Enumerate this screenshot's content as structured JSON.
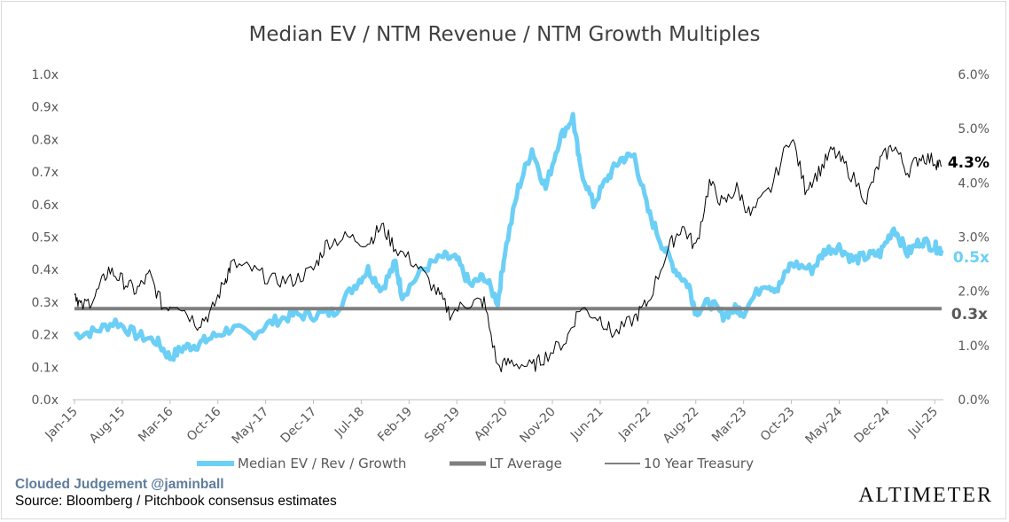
{
  "chart_data": {
    "type": "line",
    "title": "Median EV / NTM Revenue / NTM Growth Multiples",
    "x_tick_labels": [
      "Jan-15",
      "Aug-15",
      "Mar-16",
      "Oct-16",
      "May-17",
      "Dec-17",
      "Jul-18",
      "Feb-19",
      "Sep-19",
      "Apr-20",
      "Nov-20",
      "Jun-21",
      "Jan-22",
      "Aug-22",
      "Mar-23",
      "Oct-23",
      "May-24",
      "Dec-24",
      "Jul-25"
    ],
    "left_axis": {
      "ylim": [
        0,
        1.0
      ],
      "ticks": [
        "0.0x",
        "0.1x",
        "0.2x",
        "0.3x",
        "0.4x",
        "0.5x",
        "0.6x",
        "0.7x",
        "0.8x",
        "0.9x",
        "1.0x"
      ]
    },
    "right_axis": {
      "ylim": [
        0,
        6.0
      ],
      "ticks": [
        "0.0%",
        "1.0%",
        "2.0%",
        "3.0%",
        "4.0%",
        "5.0%",
        "6.0%"
      ]
    },
    "series": [
      {
        "name": "Median EV / Rev / Growth",
        "axis": "left",
        "color": "#6ccff6",
        "end_label": "0.5x",
        "points": [
          [
            "Jan-15",
            0.2
          ],
          [
            "Apr-15",
            0.21
          ],
          [
            "Jul-15",
            0.24
          ],
          [
            "Oct-15",
            0.2
          ],
          [
            "Jan-16",
            0.18
          ],
          [
            "Mar-16",
            0.13
          ],
          [
            "May-16",
            0.16
          ],
          [
            "Jul-16",
            0.17
          ],
          [
            "Sep-16",
            0.19
          ],
          [
            "Dec-16",
            0.22
          ],
          [
            "Mar-17",
            0.2
          ],
          [
            "Jun-17",
            0.24
          ],
          [
            "Sep-17",
            0.26
          ],
          [
            "Dec-17",
            0.26
          ],
          [
            "Mar-18",
            0.27
          ],
          [
            "Jun-18",
            0.35
          ],
          [
            "Aug-18",
            0.4
          ],
          [
            "Oct-18",
            0.34
          ],
          [
            "Dec-18",
            0.42
          ],
          [
            "Jan-19",
            0.32
          ],
          [
            "Apr-19",
            0.4
          ],
          [
            "Jul-19",
            0.44
          ],
          [
            "Sep-19",
            0.43
          ],
          [
            "Nov-19",
            0.35
          ],
          [
            "Jan-20",
            0.38
          ],
          [
            "Mar-20",
            0.3
          ],
          [
            "Apr-20",
            0.45
          ],
          [
            "Jun-20",
            0.65
          ],
          [
            "Aug-20",
            0.77
          ],
          [
            "Oct-20",
            0.65
          ],
          [
            "Dec-20",
            0.8
          ],
          [
            "Feb-21",
            0.87
          ],
          [
            "Mar-21",
            0.72
          ],
          [
            "May-21",
            0.6
          ],
          [
            "Jul-21",
            0.68
          ],
          [
            "Sep-21",
            0.74
          ],
          [
            "Nov-21",
            0.75
          ],
          [
            "Jan-22",
            0.58
          ],
          [
            "Mar-22",
            0.48
          ],
          [
            "May-22",
            0.4
          ],
          [
            "Jul-22",
            0.35
          ],
          [
            "Aug-22",
            0.27
          ],
          [
            "Oct-22",
            0.3
          ],
          [
            "Dec-22",
            0.26
          ],
          [
            "Feb-23",
            0.28
          ],
          [
            "Mar-23",
            0.27
          ],
          [
            "Jun-23",
            0.36
          ],
          [
            "Aug-23",
            0.34
          ],
          [
            "Oct-23",
            0.42
          ],
          [
            "Jan-24",
            0.4
          ],
          [
            "Mar-24",
            0.46
          ],
          [
            "May-24",
            0.47
          ],
          [
            "Jul-24",
            0.43
          ],
          [
            "Sep-24",
            0.44
          ],
          [
            "Nov-24",
            0.45
          ],
          [
            "Jan-25",
            0.53
          ],
          [
            "Mar-25",
            0.45
          ],
          [
            "May-25",
            0.49
          ],
          [
            "Jul-25",
            0.47
          ],
          [
            "Aug-25",
            0.46
          ]
        ]
      },
      {
        "name": "LT Average",
        "axis": "left",
        "color": "#7f7f7f",
        "end_label": "0.3x",
        "value": 0.28
      },
      {
        "name": "10 Year Treasury",
        "axis": "right",
        "color": "#000000",
        "end_label": "4.3%",
        "points": [
          [
            "Jan-15",
            2.0
          ],
          [
            "Feb-15",
            1.7
          ],
          [
            "Apr-15",
            1.9
          ],
          [
            "Jun-15",
            2.4
          ],
          [
            "Aug-15",
            2.2
          ],
          [
            "Oct-15",
            2.0
          ],
          [
            "Dec-15",
            2.3
          ],
          [
            "Feb-16",
            1.7
          ],
          [
            "Apr-16",
            1.8
          ],
          [
            "Jul-16",
            1.4
          ],
          [
            "Sep-16",
            1.6
          ],
          [
            "Nov-16",
            2.2
          ],
          [
            "Dec-16",
            2.5
          ],
          [
            "Mar-17",
            2.4
          ],
          [
            "Jun-17",
            2.2
          ],
          [
            "Sep-17",
            2.2
          ],
          [
            "Dec-17",
            2.4
          ],
          [
            "Feb-18",
            2.9
          ],
          [
            "May-18",
            3.0
          ],
          [
            "Aug-18",
            2.9
          ],
          [
            "Oct-18",
            3.2
          ],
          [
            "Dec-18",
            2.8
          ],
          [
            "Mar-19",
            2.5
          ],
          [
            "Jun-19",
            2.0
          ],
          [
            "Aug-19",
            1.6
          ],
          [
            "Nov-19",
            1.8
          ],
          [
            "Jan-20",
            1.8
          ],
          [
            "Mar-20",
            0.6
          ],
          [
            "May-20",
            0.7
          ],
          [
            "Aug-20",
            0.6
          ],
          [
            "Oct-20",
            0.8
          ],
          [
            "Jan-21",
            1.1
          ],
          [
            "Mar-21",
            1.7
          ],
          [
            "Jun-21",
            1.5
          ],
          [
            "Aug-21",
            1.2
          ],
          [
            "Nov-21",
            1.5
          ],
          [
            "Jan-22",
            1.8
          ],
          [
            "Apr-22",
            2.8
          ],
          [
            "Jun-22",
            3.2
          ],
          [
            "Aug-22",
            2.8
          ],
          [
            "Oct-22",
            4.0
          ],
          [
            "Dec-22",
            3.6
          ],
          [
            "Feb-23",
            3.9
          ],
          [
            "Apr-23",
            3.4
          ],
          [
            "Jul-23",
            3.9
          ],
          [
            "Oct-23",
            4.9
          ],
          [
            "Dec-23",
            3.9
          ],
          [
            "Feb-24",
            4.2
          ],
          [
            "Apr-24",
            4.6
          ],
          [
            "Jun-24",
            4.3
          ],
          [
            "Sep-24",
            3.7
          ],
          [
            "Nov-24",
            4.4
          ],
          [
            "Jan-25",
            4.7
          ],
          [
            "Mar-25",
            4.2
          ],
          [
            "May-25",
            4.5
          ],
          [
            "Jul-25",
            4.4
          ],
          [
            "Aug-25",
            4.3
          ]
        ]
      }
    ],
    "legend": {
      "position": "bottom",
      "entries": [
        "Median EV / Rev / Growth",
        "LT Average",
        "10 Year Treasury"
      ]
    },
    "grid": false
  },
  "footer": {
    "credit": "Clouded Judgement @jaminball",
    "source": "Source: Bloomberg / Pitchbook consensus estimates",
    "brand": "Altimeter"
  },
  "colors": {
    "ev_series": "#6ccff6",
    "lt_average": "#7f7f7f",
    "treasury": "#000000",
    "credit_text": "#5e7d9c"
  }
}
